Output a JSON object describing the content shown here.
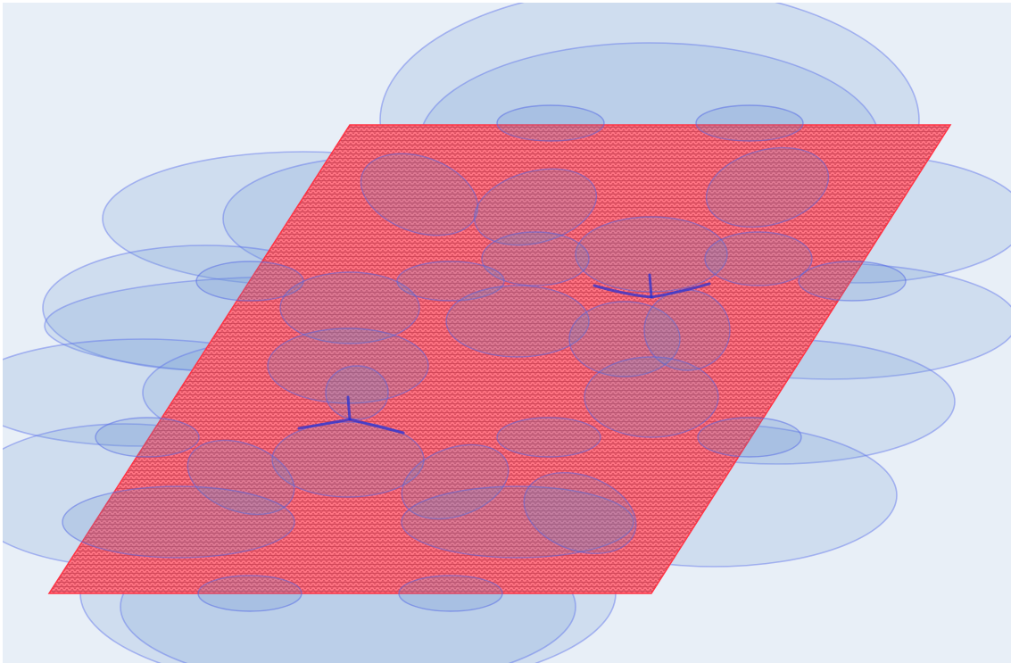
{
  "colors": {
    "background": "#e8eff7",
    "surface_fill": "#ff6f7f",
    "surface_hatch": "#c0384a",
    "surface_outline": "#ff3344",
    "cloud_fill": "#78a0d7",
    "cloud_stroke": "#5a6eeb",
    "node_line": "#2832d2"
  },
  "nodes": [
    {
      "id": "junction-right"
    },
    {
      "id": "junction-left"
    }
  ]
}
